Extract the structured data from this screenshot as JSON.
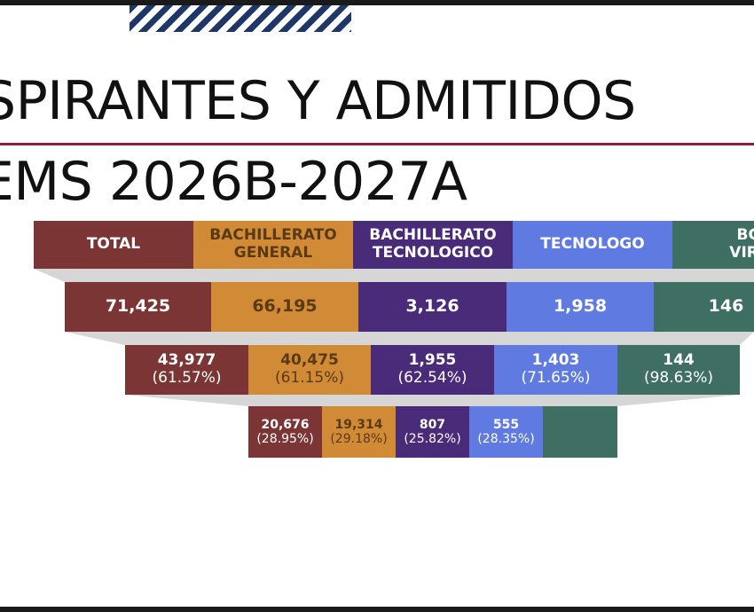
{
  "header": {
    "title_line1": "SPIRANTES Y ADMITIDOS",
    "title_line2": "EMS 2026B-2027A"
  },
  "colors": {
    "total": "#7b3535",
    "general": "#d18a35",
    "tecnologico": "#4a2b7a",
    "tecnologo": "#5f7ae0",
    "virtual": "#3f6f62",
    "stripe": "#1f3768",
    "rule": "#8e1f3a"
  },
  "funnel": {
    "headers": [
      "TOTAL",
      "BACHILLERATO\nGENERAL",
      "BACHILLERATO\nTECNOLOGICO",
      "TECNOLOGO",
      "BG\nVIRT"
    ],
    "row1": [
      "71,425",
      "66,195",
      "3,126",
      "1,958",
      "146"
    ],
    "row2": [
      {
        "value": "43,977",
        "pct": "(61.57%)"
      },
      {
        "value": "40,475",
        "pct": "(61.15%)"
      },
      {
        "value": "1,955",
        "pct": "(62.54%)"
      },
      {
        "value": "1,403",
        "pct": "(71.65%)"
      },
      {
        "value": "144",
        "pct": "(98.63%)"
      }
    ],
    "row3": [
      {
        "value": "20,676",
        "pct": "(28.95%)"
      },
      {
        "value": "19,314",
        "pct": "(29.18%)"
      },
      {
        "value": "807",
        "pct": "(25.82%)"
      },
      {
        "value": "555",
        "pct": "(28.35%)"
      },
      {
        "value": "",
        "pct": ""
      }
    ]
  }
}
